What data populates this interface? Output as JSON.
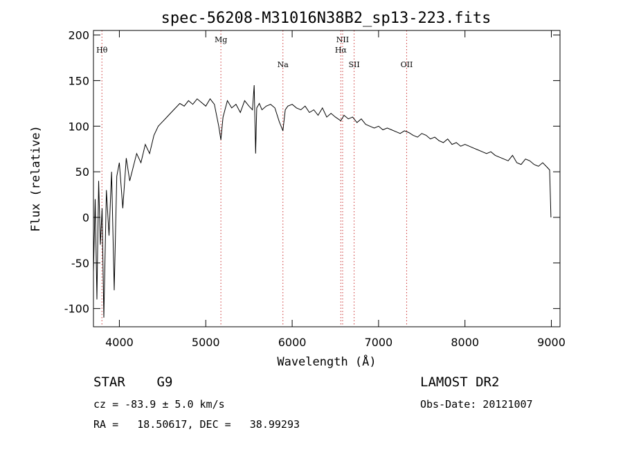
{
  "chart_data": {
    "type": "line",
    "title": "spec-56208-M31016N38B2_sp13-223.fits",
    "xlabel": "Wavelength (Å)",
    "ylabel": "Flux (relative)",
    "xlim": [
      3700,
      9100
    ],
    "ylim": [
      -120,
      205
    ],
    "xticks": [
      4000,
      5000,
      6000,
      7000,
      8000,
      9000
    ],
    "yticks": [
      -100,
      -50,
      0,
      50,
      100,
      150,
      200
    ],
    "grid": false,
    "line_color": "#000000",
    "marker_color": "#cc3333",
    "series": [
      {
        "x": [
          3700,
          3720,
          3740,
          3760,
          3780,
          3800,
          3820,
          3850,
          3880,
          3910,
          3940,
          3970,
          4000,
          4040,
          4080,
          4120,
          4160,
          4200,
          4250,
          4300,
          4350,
          4400,
          4450,
          4500,
          4550,
          4600,
          4650,
          4700,
          4750,
          4800,
          4850,
          4900,
          4950,
          5000,
          5050,
          5100,
          5150,
          5175,
          5200,
          5250,
          5300,
          5350,
          5400,
          5450,
          5500,
          5540,
          5560,
          5577,
          5590,
          5620,
          5650,
          5700,
          5750,
          5800,
          5850,
          5893,
          5920,
          5950,
          6000,
          6050,
          6100,
          6150,
          6200,
          6250,
          6300,
          6350,
          6400,
          6450,
          6500,
          6563,
          6600,
          6650,
          6700,
          6750,
          6800,
          6850,
          6900,
          6950,
          7000,
          7050,
          7100,
          7150,
          7200,
          7250,
          7300,
          7350,
          7400,
          7450,
          7500,
          7550,
          7600,
          7650,
          7700,
          7750,
          7800,
          7850,
          7900,
          7950,
          8000,
          8050,
          8100,
          8150,
          8200,
          8250,
          8300,
          8350,
          8400,
          8450,
          8500,
          8550,
          8600,
          8650,
          8700,
          8750,
          8800,
          8850,
          8900,
          8950,
          8980,
          8995
        ],
        "y": [
          -60,
          20,
          -90,
          40,
          -30,
          10,
          -110,
          30,
          -20,
          50,
          -80,
          45,
          60,
          10,
          65,
          40,
          55,
          70,
          60,
          80,
          70,
          90,
          100,
          105,
          110,
          115,
          120,
          125,
          122,
          128,
          124,
          130,
          126,
          122,
          130,
          124,
          100,
          85,
          110,
          128,
          120,
          124,
          115,
          128,
          122,
          118,
          145,
          70,
          120,
          125,
          118,
          122,
          124,
          120,
          105,
          95,
          118,
          122,
          124,
          120,
          118,
          122,
          115,
          118,
          112,
          120,
          110,
          114,
          110,
          106,
          112,
          108,
          110,
          104,
          108,
          102,
          100,
          98,
          100,
          96,
          98,
          96,
          94,
          92,
          95,
          93,
          90,
          88,
          92,
          90,
          86,
          88,
          84,
          82,
          86,
          80,
          82,
          78,
          80,
          78,
          76,
          74,
          72,
          70,
          72,
          68,
          66,
          64,
          62,
          68,
          60,
          58,
          64,
          62,
          58,
          56,
          60,
          55,
          52,
          0
        ]
      }
    ],
    "line_markers": [
      {
        "label": "Hθ",
        "x": 3798
      },
      {
        "label": "Mg",
        "x": 5175
      },
      {
        "label": "Na",
        "x": 5893
      },
      {
        "label": "NII",
        "x": 6584
      },
      {
        "label": "Hα",
        "x": 6563
      },
      {
        "label": "SII",
        "x": 6717
      },
      {
        "label": "OII",
        "x": 7325
      }
    ]
  },
  "info": {
    "class_label": "STAR    G9",
    "survey": "LAMOST DR2",
    "cz_text": "cz = -83.9 ± 5.0 km/s",
    "obs_date": "Obs-Date: 20121007",
    "coords": "RA =   18.50617, DEC =   38.99293"
  }
}
